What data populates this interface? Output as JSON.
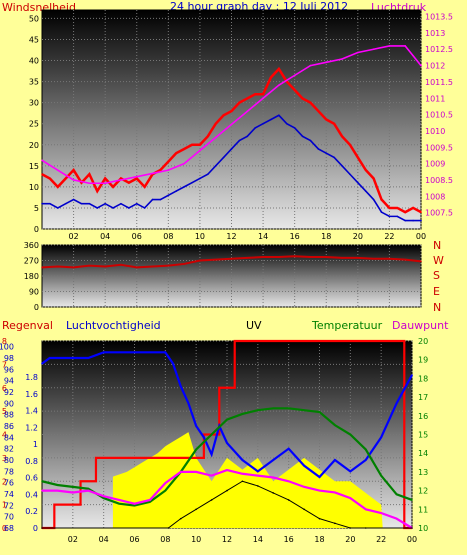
{
  "header": {
    "left_label": "Windsnelheid",
    "title": "24 hour graph day : 12 Juli 2012",
    "right_label": "Luchtdruk"
  },
  "colors": {
    "background": "#ffff99",
    "wind": "#ff0000",
    "gust": "#0000cc",
    "pressure": "#ff00ff",
    "direction": "#cc0000",
    "rain": "#ff0000",
    "humidity": "#0000ff",
    "uv": "#ffff00",
    "temperature": "#008000",
    "dewpoint": "#ff00ff",
    "solar": "#000000"
  },
  "compass": [
    "N",
    "W",
    "S",
    "E",
    "N"
  ],
  "bottom_header": {
    "rain": "Regenval",
    "humidity": "Luchtvochtigheid",
    "uv": "UV",
    "temperature": "Temperatuur",
    "dewpoint": "Dauwpunt"
  },
  "chart_data": [
    {
      "type": "line",
      "title": "24 hour graph day : 12 Juli 2012",
      "x_ticks": [
        "02",
        "04",
        "06",
        "08",
        "10",
        "12",
        "14",
        "16",
        "18",
        "20",
        "22",
        "00"
      ],
      "xlim": [
        0,
        24
      ],
      "ylim_left": [
        0,
        52
      ],
      "left_ticks": [
        "0",
        "5",
        "10",
        "15",
        "20",
        "25",
        "30",
        "35",
        "40",
        "45",
        "50"
      ],
      "ylim_right": [
        1007,
        1013.7
      ],
      "right_ticks": [
        "1007.5",
        "1008",
        "1008.5",
        "1009",
        "1009.5",
        "1010",
        "1010.5",
        "1011",
        "1011.5",
        "1012",
        "1012.5",
        "1013",
        "1013.5"
      ],
      "ylabel_left": "Windsnelheid",
      "ylabel_right": "Luchtdruk",
      "grid": true,
      "series": [
        {
          "name": "wind",
          "axis": "left",
          "x": [
            0,
            0.5,
            1,
            1.5,
            2,
            2.5,
            3,
            3.5,
            4,
            4.5,
            5,
            5.5,
            6,
            6.5,
            7,
            7.5,
            8,
            8.5,
            9,
            9.5,
            10,
            10.5,
            11,
            11.5,
            12,
            12.5,
            13,
            13.5,
            14,
            14.5,
            15,
            15.5,
            16,
            16.5,
            17,
            17.5,
            18,
            18.5,
            19,
            19.5,
            20,
            20.5,
            21,
            21.5,
            22,
            22.5,
            23,
            23.5,
            24
          ],
          "values": [
            13,
            12,
            10,
            12,
            14,
            11,
            13,
            9,
            12,
            10,
            12,
            11,
            12,
            10,
            13,
            14,
            16,
            18,
            19,
            20,
            20,
            22,
            25,
            27,
            28,
            30,
            31,
            32,
            32,
            36,
            38,
            35,
            33,
            31,
            30,
            28,
            26,
            25,
            22,
            20,
            17,
            14,
            12,
            7,
            5,
            5,
            4,
            5,
            4
          ]
        },
        {
          "name": "gust",
          "axis": "left",
          "x": [
            0,
            0.5,
            1,
            1.5,
            2,
            2.5,
            3,
            3.5,
            4,
            4.5,
            5,
            5.5,
            6,
            6.5,
            7,
            7.5,
            8,
            8.5,
            9,
            9.5,
            10,
            10.5,
            11,
            11.5,
            12,
            12.5,
            13,
            13.5,
            14,
            14.5,
            15,
            15.5,
            16,
            16.5,
            17,
            17.5,
            18,
            18.5,
            19,
            19.5,
            20,
            20.5,
            21,
            21.5,
            22,
            22.5,
            23,
            23.5,
            24
          ],
          "values": [
            6,
            6,
            5,
            6,
            7,
            6,
            6,
            5,
            6,
            5,
            6,
            5,
            6,
            5,
            7,
            7,
            8,
            9,
            10,
            11,
            12,
            13,
            15,
            17,
            19,
            21,
            22,
            24,
            25,
            26,
            27,
            25,
            24,
            22,
            21,
            19,
            18,
            17,
            15,
            13,
            11,
            9,
            7,
            4,
            3,
            3,
            2,
            2,
            2
          ]
        },
        {
          "name": "pressure",
          "axis": "right",
          "x": [
            0,
            1,
            2,
            3,
            4,
            5,
            6,
            7,
            8,
            9,
            10,
            11,
            12,
            13,
            14,
            15,
            16,
            17,
            18,
            19,
            20,
            21,
            22,
            23,
            23.5,
            24
          ],
          "values": [
            1009.1,
            1008.8,
            1008.5,
            1008.4,
            1008.4,
            1008.5,
            1008.6,
            1008.7,
            1008.8,
            1009.0,
            1009.4,
            1009.8,
            1010.2,
            1010.6,
            1011.0,
            1011.4,
            1011.7,
            1012.0,
            1012.1,
            1012.2,
            1012.4,
            1012.5,
            1012.6,
            1012.6,
            1012.3,
            1012.0
          ]
        }
      ]
    },
    {
      "type": "line",
      "x_ticks": [
        "02",
        "04",
        "06",
        "08",
        "10",
        "12",
        "14",
        "16",
        "18",
        "20",
        "22",
        "00"
      ],
      "xlim": [
        0,
        24
      ],
      "ylim": [
        0,
        360
      ],
      "left_ticks": [
        "0",
        "90",
        "180",
        "270",
        "360"
      ],
      "series": [
        {
          "name": "direction",
          "x": [
            0,
            1,
            2,
            3,
            4,
            5,
            6,
            7,
            8,
            9,
            10,
            11,
            12,
            13,
            14,
            15,
            16,
            17,
            18,
            19,
            20,
            21,
            22,
            23,
            24
          ],
          "values": [
            230,
            235,
            230,
            240,
            235,
            245,
            230,
            235,
            240,
            250,
            270,
            275,
            280,
            285,
            290,
            290,
            295,
            290,
            290,
            285,
            285,
            280,
            280,
            275,
            265
          ]
        }
      ]
    },
    {
      "type": "line",
      "x_ticks": [
        "02",
        "04",
        "06",
        "08",
        "10",
        "12",
        "14",
        "16",
        "18",
        "20",
        "22",
        "00"
      ],
      "xlim": [
        0,
        24
      ],
      "ylim_left": [
        0,
        8
      ],
      "rain_ticks": [
        "0",
        "1",
        "2",
        "3",
        "4",
        "5",
        "6",
        "7",
        "8"
      ],
      "ylim_humidity": [
        68,
        101
      ],
      "humidity_ticks": [
        "68",
        "70",
        "72",
        "74",
        "76",
        "78",
        "80",
        "82",
        "84",
        "86",
        "88",
        "90",
        "92",
        "94",
        "96",
        "98",
        "100"
      ],
      "uv_ticks": [
        "0",
        "0.2",
        "0.4",
        "0.6",
        "0.8",
        "1",
        "1.2",
        "1.4",
        "1.6",
        "1.8"
      ],
      "ylim_right": [
        10,
        20
      ],
      "temp_ticks": [
        "10",
        "11",
        "12",
        "13",
        "14",
        "15",
        "16",
        "17",
        "18",
        "19",
        "20"
      ],
      "series": [
        {
          "name": "Regenval",
          "axis": "rain",
          "x": [
            0,
            0.8,
            0.8,
            2.5,
            2.5,
            3.5,
            3.5,
            10.5,
            10.5,
            11.5,
            11.5,
            12.5,
            12.5,
            23.5,
            23.5,
            24
          ],
          "values": [
            0,
            0,
            1,
            1,
            2,
            2,
            3,
            3,
            4,
            4,
            6,
            6,
            8,
            8,
            0,
            0
          ]
        },
        {
          "name": "Luchtvochtigheid",
          "axis": "humidity",
          "x": [
            0,
            0.5,
            1,
            2,
            3,
            4,
            5,
            6,
            7,
            8,
            8.5,
            9,
            9.5,
            10,
            10.5,
            11,
            11.5,
            12,
            13,
            14,
            15,
            16,
            17,
            18,
            19,
            20,
            21,
            22,
            23,
            24
          ],
          "values": [
            97,
            98,
            98,
            98,
            98,
            99,
            99,
            99,
            99,
            99,
            97,
            93,
            90,
            86,
            84,
            81,
            86,
            83,
            80,
            78,
            80,
            82,
            79,
            77,
            80,
            78,
            80,
            84,
            90,
            95
          ]
        },
        {
          "name": "UV",
          "axis": "rain",
          "x": [
            0,
            4.6,
            4.6,
            5.5,
            6,
            6.5,
            7,
            7.5,
            8,
            8.5,
            9,
            9.5,
            10,
            11,
            12,
            13,
            14,
            15,
            16,
            17,
            18,
            19,
            20,
            21,
            22,
            22.1,
            24
          ],
          "values": [
            0,
            0,
            2.2,
            2.4,
            2.6,
            2.8,
            3.0,
            3.2,
            3.5,
            3.7,
            3.9,
            4.1,
            3.0,
            2.0,
            3.0,
            2.5,
            3.0,
            2.0,
            2.5,
            3.0,
            2.5,
            2.0,
            2.0,
            1.5,
            1.0,
            0,
            0
          ]
        },
        {
          "name": "Temperatuur",
          "axis": "temp",
          "x": [
            0,
            1,
            2,
            3,
            4,
            5,
            6,
            7,
            8,
            9,
            10,
            11,
            12,
            13,
            14,
            15,
            16,
            17,
            18,
            19,
            20,
            21,
            22,
            23,
            24
          ],
          "values": [
            12.5,
            12.3,
            12.2,
            12.1,
            11.6,
            11.3,
            11.2,
            11.4,
            12.0,
            13.0,
            14.2,
            15.0,
            15.8,
            16.1,
            16.3,
            16.4,
            16.4,
            16.3,
            16.2,
            15.5,
            15.0,
            14.2,
            12.8,
            11.8,
            11.5
          ]
        },
        {
          "name": "Dauwpunt",
          "axis": "temp",
          "x": [
            0,
            1,
            2,
            3,
            4,
            5,
            6,
            7,
            8,
            9,
            10,
            11,
            12,
            13,
            14,
            15,
            16,
            17,
            18,
            19,
            20,
            21,
            22,
            23,
            24
          ],
          "values": [
            12.0,
            12.0,
            11.9,
            12.0,
            11.7,
            11.5,
            11.3,
            11.5,
            12.4,
            13.0,
            13.0,
            12.8,
            13.1,
            12.9,
            12.8,
            12.7,
            12.5,
            12.2,
            12.0,
            11.9,
            11.6,
            11.0,
            10.8,
            10.5,
            10.0
          ]
        },
        {
          "name": "solar",
          "axis": "rain",
          "x": [
            0,
            8.2,
            9,
            10,
            11,
            12,
            13,
            14,
            15,
            16,
            17,
            18,
            19,
            20,
            21,
            24
          ],
          "values": [
            0,
            0,
            0.4,
            0.8,
            1.2,
            1.6,
            2.0,
            1.8,
            1.5,
            1.2,
            0.8,
            0.4,
            0.2,
            0,
            0,
            0
          ]
        }
      ]
    }
  ]
}
